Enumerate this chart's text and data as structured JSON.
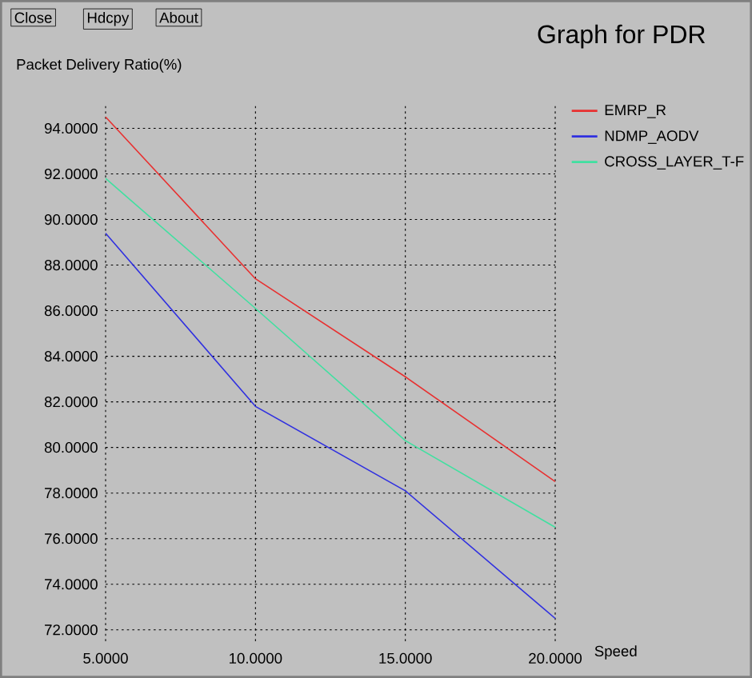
{
  "chart_data": {
    "type": "line",
    "title": "Graph for PDR",
    "ylabel": "Packet Delivery Ratio(%)",
    "xlabel": "Speed",
    "annotations": [
      "Close",
      "Hdcpy",
      "About"
    ],
    "x": [
      5,
      10,
      15,
      20
    ],
    "series": [
      {
        "name": "EMRP_R",
        "color": "#e83030",
        "values": [
          94.5,
          87.4,
          83.1,
          78.5
        ]
      },
      {
        "name": "NDMP_AODV",
        "color": "#3030e0",
        "values": [
          89.4,
          81.8,
          78.1,
          72.5
        ]
      },
      {
        "name": "CROSS_LAYER_T-F",
        "color": "#40e0a0",
        "values": [
          91.8,
          86.1,
          80.3,
          76.5
        ]
      }
    ],
    "xlim": [
      5,
      20
    ],
    "ylim": [
      71.5,
      95
    ],
    "xticks": [
      {
        "value": 5,
        "label": "5.0000"
      },
      {
        "value": 10,
        "label": "10.0000"
      },
      {
        "value": 15,
        "label": "15.0000"
      },
      {
        "value": 20,
        "label": "20.0000"
      }
    ],
    "yticks": [
      {
        "value": 72,
        "label": "72.0000"
      },
      {
        "value": 74,
        "label": "74.0000"
      },
      {
        "value": 76,
        "label": "76.0000"
      },
      {
        "value": 78,
        "label": "78.0000"
      },
      {
        "value": 80,
        "label": "80.0000"
      },
      {
        "value": 82,
        "label": "82.0000"
      },
      {
        "value": 84,
        "label": "84.0000"
      },
      {
        "value": 86,
        "label": "86.0000"
      },
      {
        "value": 88,
        "label": "88.0000"
      },
      {
        "value": 90,
        "label": "90.0000"
      },
      {
        "value": 92,
        "label": "92.0000"
      },
      {
        "value": 94,
        "label": "94.0000"
      }
    ],
    "grid": true,
    "legend": "top right",
    "marker": "none",
    "line_style": "solid"
  }
}
